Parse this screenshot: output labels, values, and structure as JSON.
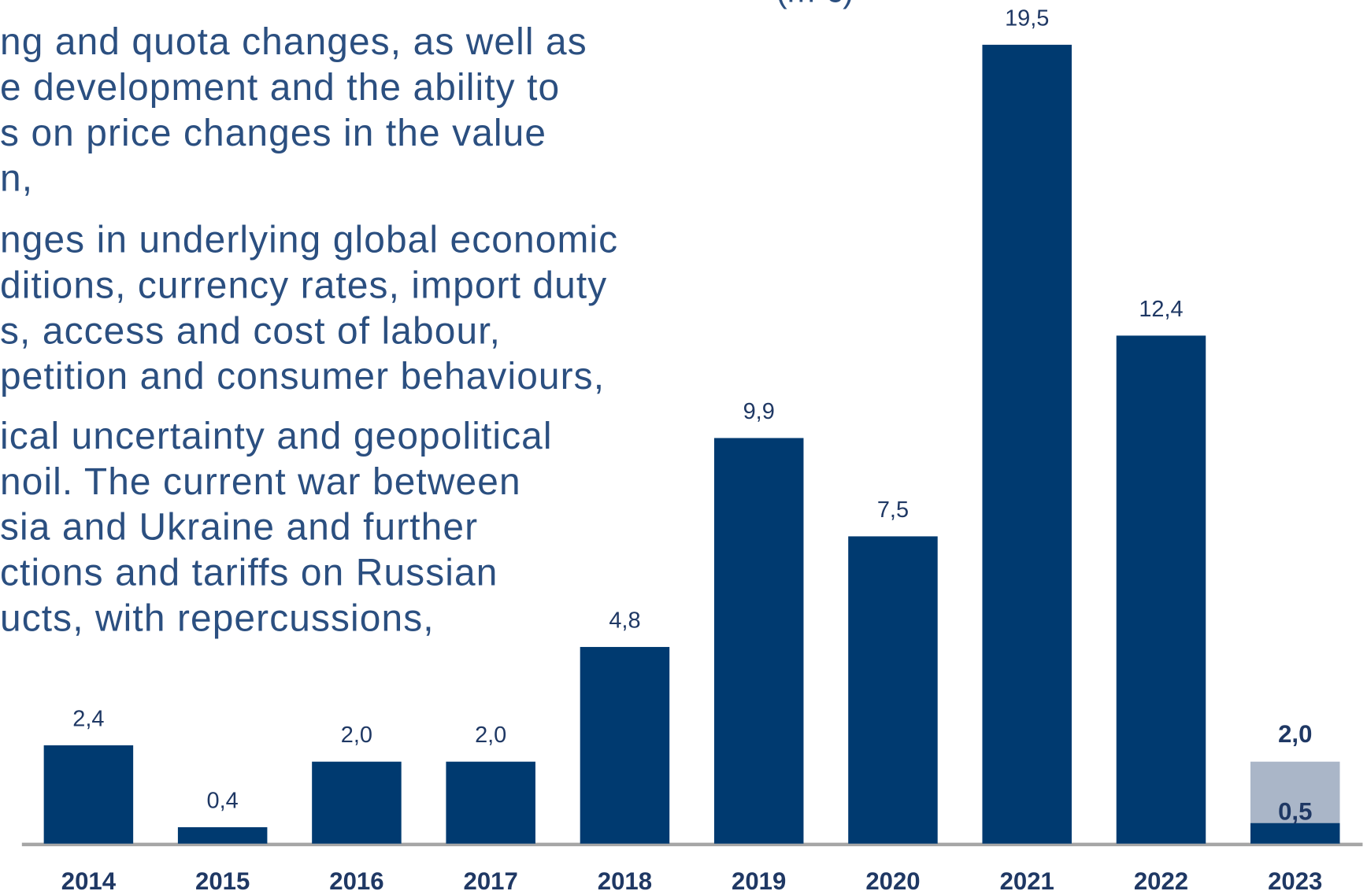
{
  "text_lines": [
    "ng and quota changes, as well as",
    "e development and the ability to",
    "s on price changes in the value",
    "n,",
    "nges in underlying global economic",
    "ditions, currency rates, import duty",
    "s, access and cost of labour,",
    "petition and consumer behaviours,",
    "ical uncertainty and geopolitical",
    "noil.  The current war between",
    "sia and Ukraine and further",
    "ctions and tariffs on Russian",
    "ucts, with repercussions,"
  ],
  "chart_data": {
    "type": "bar",
    "subtitle": "(m €)",
    "categories": [
      "2014",
      "2015",
      "2016",
      "2017",
      "2018",
      "2019",
      "2020",
      "2021",
      "2022",
      "2023"
    ],
    "series": [
      {
        "color": "#aab6c8",
        "values": [
          null,
          null,
          null,
          null,
          null,
          null,
          null,
          null,
          null,
          2.0
        ],
        "value_labels": [
          null,
          null,
          null,
          null,
          null,
          null,
          null,
          null,
          null,
          "2,0"
        ]
      },
      {
        "color": "#003a70",
        "values": [
          2.4,
          0.4,
          2.0,
          2.0,
          4.8,
          9.9,
          7.5,
          19.5,
          12.4,
          0.5
        ],
        "value_labels": [
          "2,4",
          "0,4",
          "2,0",
          "2,0",
          "4,8",
          "9,9",
          "7,5",
          "19,5",
          "12,4",
          "0,5"
        ]
      }
    ],
    "ylim": [
      0,
      20
    ]
  }
}
